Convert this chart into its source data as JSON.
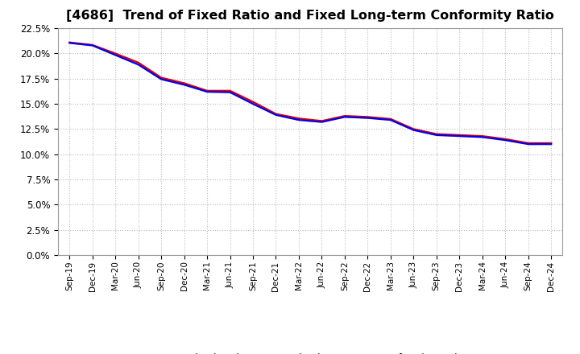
{
  "title": "[4686]  Trend of Fixed Ratio and Fixed Long-term Conformity Ratio",
  "title_fontsize": 11.5,
  "ylim": [
    0.0,
    0.225
  ],
  "ytick_step": 0.025,
  "background_color": "#ffffff",
  "plot_bg_color": "#ffffff",
  "grid_color": "#bbbbbb",
  "legend_entries": [
    "Fixed Ratio",
    "Fixed Long-term Conformity Ratio"
  ],
  "legend_colors": [
    "#0000ee",
    "#dd0000"
  ],
  "x_labels": [
    "Sep-19",
    "Dec-19",
    "Mar-20",
    "Jun-20",
    "Sep-20",
    "Dec-20",
    "Mar-21",
    "Jun-21",
    "Sep-21",
    "Dec-21",
    "Mar-22",
    "Jun-22",
    "Sep-22",
    "Dec-22",
    "Mar-23",
    "Jun-23",
    "Sep-23",
    "Dec-23",
    "Mar-24",
    "Jun-24",
    "Sep-24",
    "Dec-24"
  ],
  "fixed_ratio": [
    0.2105,
    0.208,
    0.1985,
    0.189,
    0.1745,
    0.169,
    0.162,
    0.1615,
    0.15,
    0.139,
    0.134,
    0.132,
    0.137,
    0.136,
    0.134,
    0.124,
    0.119,
    0.118,
    0.117,
    0.114,
    0.11,
    0.11
  ],
  "fixed_lt_ratio": [
    0.211,
    0.2085,
    0.2,
    0.191,
    0.176,
    0.1705,
    0.163,
    0.163,
    0.152,
    0.14,
    0.1355,
    0.133,
    0.138,
    0.137,
    0.135,
    0.125,
    0.12,
    0.119,
    0.118,
    0.115,
    0.111,
    0.111
  ],
  "line1_color": "#0000ee",
  "line2_color": "#dd0000",
  "line_width": 1.6,
  "fill_color": "#f8c8c8"
}
